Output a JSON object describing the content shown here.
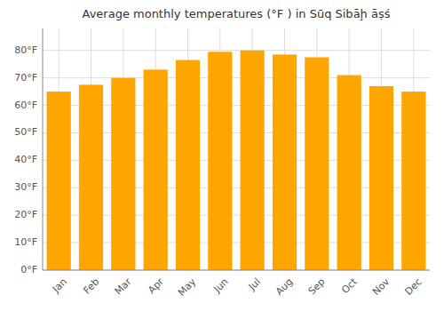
{
  "chart_data": {
    "type": "bar",
    "title": "Average monthly temperatures (°F ) in Sūq Sibāḩ āṣś",
    "categories": [
      "Jan",
      "Feb",
      "Mar",
      "Apr",
      "May",
      "Jun",
      "Jul",
      "Aug",
      "Sep",
      "Oct",
      "Nov",
      "Dec"
    ],
    "values": [
      65,
      67.5,
      70,
      73,
      76.5,
      79.5,
      80,
      78.5,
      77.5,
      71,
      67,
      65
    ],
    "color": "#FFA500",
    "ylim": [
      0,
      88
    ],
    "yticks": [
      {
        "value": 0,
        "label": "0°F"
      },
      {
        "value": 10,
        "label": "10°F"
      },
      {
        "value": 20,
        "label": "20°F"
      },
      {
        "value": 30,
        "label": "30°F"
      },
      {
        "value": 40,
        "label": "40°F"
      },
      {
        "value": 50,
        "label": "50°F"
      },
      {
        "value": 60,
        "label": "60°F"
      },
      {
        "value": 70,
        "label": "70°F"
      },
      {
        "value": 80,
        "label": "80°F"
      }
    ],
    "grid": true
  }
}
